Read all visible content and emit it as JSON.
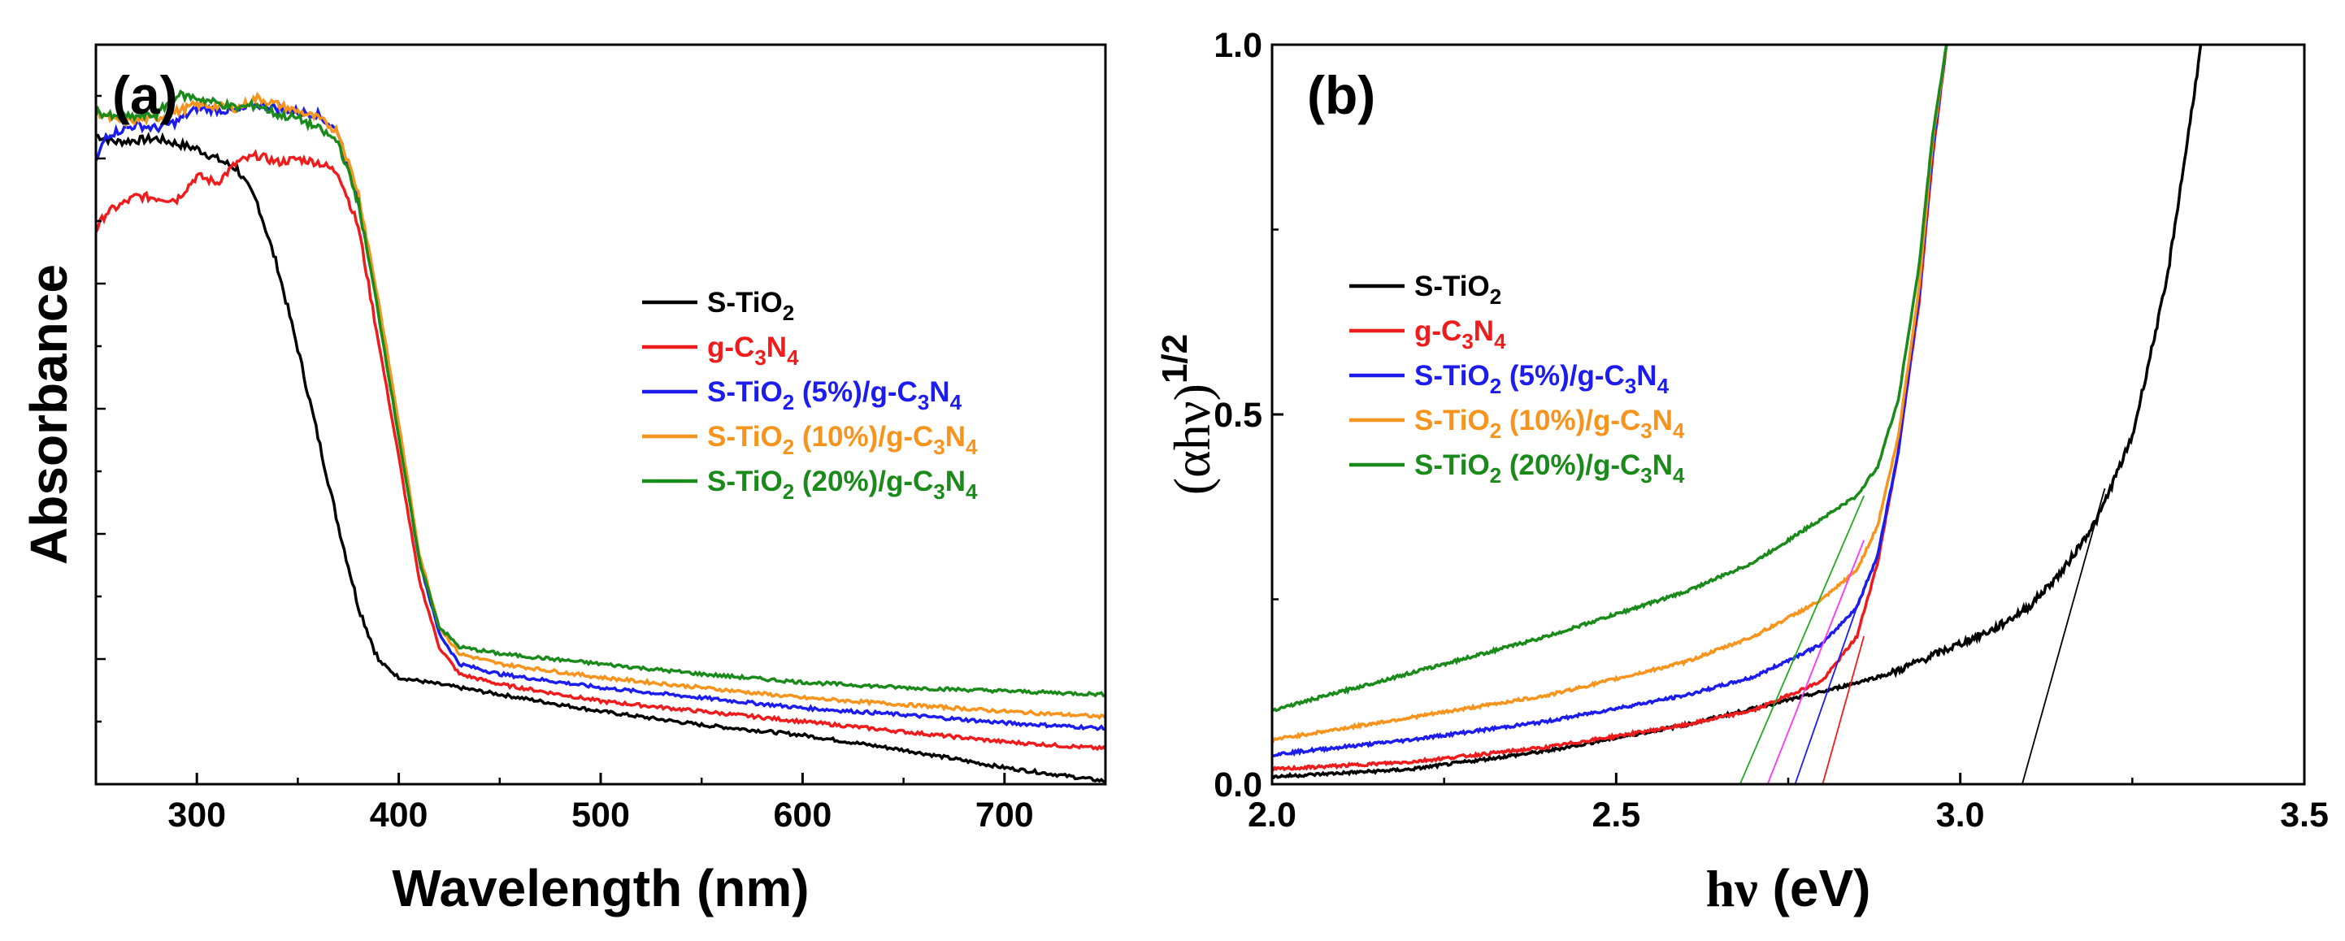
{
  "colors": {
    "S-TiO2": "#000000",
    "g-C3N4": "#ee1c1c",
    "S-TiO2 (5%)/g-C3N4": "#1c1cee",
    "S-TiO2 (10%)/g-C3N4": "#f7941d",
    "S-TiO2 (20%)/g-C3N4": "#1a8a1a",
    "tangent_g-C3N4": "#ee1c1c",
    "tangent_S-TiO2 (5%)/g-C3N4": "#1c1cee",
    "tangent_S-TiO2 (10%)/g-C3N4": "#ff33ff",
    "tangent_S-TiO2 (20%)/g-C3N4": "#22aa22"
  },
  "legend": [
    {
      "key": "S-TiO2",
      "parts": [
        [
          "S-TiO",
          ""
        ],
        [
          "2",
          "sub"
        ]
      ]
    },
    {
      "key": "g-C3N4",
      "parts": [
        [
          "g-C",
          ""
        ],
        [
          "3",
          "sub"
        ],
        [
          "N",
          ""
        ],
        [
          "4",
          "sub"
        ]
      ]
    },
    {
      "key": "S-TiO2 (5%)/g-C3N4",
      "parts": [
        [
          "S-TiO",
          ""
        ],
        [
          "2",
          "sub"
        ],
        [
          " (5%)/g-C",
          ""
        ],
        [
          "3",
          "sub"
        ],
        [
          "N",
          ""
        ],
        [
          "4",
          "sub"
        ]
      ]
    },
    {
      "key": "S-TiO2 (10%)/g-C3N4",
      "parts": [
        [
          "S-TiO",
          ""
        ],
        [
          "2",
          "sub"
        ],
        [
          " (10%)/g-C",
          ""
        ],
        [
          "3",
          "sub"
        ],
        [
          "N",
          ""
        ],
        [
          "4",
          "sub"
        ]
      ]
    },
    {
      "key": "S-TiO2 (20%)/g-C3N4",
      "parts": [
        [
          "S-TiO",
          ""
        ],
        [
          "2",
          "sub"
        ],
        [
          " (20%)/g-C",
          ""
        ],
        [
          "3",
          "sub"
        ],
        [
          "N",
          ""
        ],
        [
          "4",
          "sub"
        ]
      ]
    }
  ],
  "chart_data": [
    {
      "panel": "(a)",
      "type": "line",
      "title": "",
      "xlabel": "Wavelength (nm)",
      "ylabel": "Absorbance",
      "xlim": [
        250,
        750
      ],
      "ylim": [
        0,
        1.0
      ],
      "xticks": [
        300,
        400,
        500,
        600,
        700
      ],
      "yticks_shown": false,
      "legend_position": "right-center",
      "series": [
        {
          "name": "S-TiO2",
          "x": [
            250,
            260,
            280,
            300,
            320,
            330,
            340,
            350,
            360,
            370,
            380,
            390,
            400,
            420,
            450,
            500,
            550,
            600,
            650,
            700,
            750
          ],
          "y": [
            0.955,
            0.945,
            0.95,
            0.935,
            0.905,
            0.855,
            0.76,
            0.64,
            0.51,
            0.38,
            0.26,
            0.18,
            0.155,
            0.145,
            0.13,
            0.105,
            0.085,
            0.07,
            0.048,
            0.022,
            0.002
          ]
        },
        {
          "name": "g-C3N4",
          "x": [
            250,
            255,
            270,
            290,
            300,
            310,
            320,
            330,
            340,
            350,
            360,
            370,
            380,
            390,
            400,
            410,
            420,
            430,
            450,
            500,
            550,
            600,
            650,
            700,
            750
          ],
          "y": [
            0.815,
            0.84,
            0.865,
            0.86,
            0.895,
            0.885,
            0.915,
            0.925,
            0.915,
            0.92,
            0.915,
            0.9,
            0.82,
            0.65,
            0.48,
            0.3,
            0.2,
            0.16,
            0.145,
            0.12,
            0.105,
            0.09,
            0.075,
            0.06,
            0.05
          ]
        },
        {
          "name": "S-TiO2 (5%)/g-C3N4",
          "x": [
            250,
            255,
            270,
            280,
            290,
            300,
            320,
            330,
            340,
            350,
            360,
            370,
            380,
            390,
            400,
            410,
            420,
            430,
            450,
            500,
            550,
            600,
            650,
            700,
            750
          ],
          "y": [
            0.915,
            0.955,
            0.97,
            0.965,
            0.975,
            0.995,
            0.99,
            1.0,
            0.995,
            0.99,
            0.985,
            0.96,
            0.86,
            0.7,
            0.52,
            0.33,
            0.22,
            0.175,
            0.16,
            0.14,
            0.125,
            0.11,
            0.1,
            0.088,
            0.08
          ]
        },
        {
          "name": "S-TiO2 (10%)/g-C3N4",
          "x": [
            250,
            260,
            280,
            300,
            320,
            330,
            340,
            350,
            360,
            370,
            380,
            390,
            400,
            410,
            420,
            430,
            450,
            500,
            550,
            600,
            650,
            700,
            750
          ],
          "y": [
            0.99,
            0.975,
            0.98,
            1.0,
            0.995,
            1.01,
            1.0,
            0.99,
            0.98,
            0.96,
            0.87,
            0.71,
            0.53,
            0.34,
            0.23,
            0.19,
            0.175,
            0.155,
            0.14,
            0.125,
            0.115,
            0.105,
            0.097
          ]
        },
        {
          "name": "S-TiO2 (20%)/g-C3N4",
          "x": [
            250,
            260,
            280,
            290,
            300,
            320,
            330,
            340,
            350,
            360,
            370,
            380,
            390,
            400,
            410,
            420,
            430,
            450,
            500,
            550,
            600,
            650,
            700,
            750
          ],
          "y": [
            0.99,
            0.98,
            0.985,
            1.015,
            1.01,
            0.995,
            1.0,
            0.985,
            0.98,
            0.965,
            0.945,
            0.855,
            0.69,
            0.51,
            0.33,
            0.23,
            0.2,
            0.19,
            0.175,
            0.16,
            0.148,
            0.14,
            0.135,
            0.13
          ]
        }
      ]
    },
    {
      "panel": "(b)",
      "type": "line",
      "title": "",
      "xlabel": "hν (eV)",
      "ylabel": "(αhν)^1/2",
      "xlim": [
        2.0,
        3.5
      ],
      "ylim": [
        0.0,
        1.0
      ],
      "xticks": [
        2.0,
        2.5,
        3.0,
        3.5
      ],
      "yticks": [
        0.0,
        0.5,
        1.0
      ],
      "xtick_labels": [
        "2.0",
        "2.5",
        "3.0",
        "3.5"
      ],
      "ytick_labels": [
        "0.0",
        "0.5",
        "1.0"
      ],
      "legend_position": "left-center",
      "series": [
        {
          "name": "S-TiO2",
          "x": [
            2.0,
            2.2,
            2.4,
            2.6,
            2.8,
            2.9,
            3.0,
            3.05,
            3.1,
            3.15,
            3.2,
            3.25,
            3.3,
            3.33,
            3.35
          ],
          "y": [
            0.01,
            0.02,
            0.045,
            0.08,
            0.125,
            0.15,
            0.19,
            0.21,
            0.24,
            0.29,
            0.36,
            0.47,
            0.68,
            0.87,
            1.0
          ]
        },
        {
          "name": "g-C3N4",
          "x": [
            2.0,
            2.2,
            2.4,
            2.6,
            2.7,
            2.8,
            2.85,
            2.88,
            2.91,
            2.94,
            2.96,
            2.98
          ],
          "y": [
            0.02,
            0.03,
            0.05,
            0.08,
            0.1,
            0.14,
            0.2,
            0.3,
            0.45,
            0.65,
            0.85,
            1.0
          ]
        },
        {
          "name": "S-TiO2 (5%)/g-C3N4",
          "x": [
            2.0,
            2.2,
            2.4,
            2.6,
            2.7,
            2.8,
            2.85,
            2.88,
            2.91,
            2.94,
            2.96,
            2.98
          ],
          "y": [
            0.04,
            0.06,
            0.085,
            0.12,
            0.145,
            0.19,
            0.24,
            0.31,
            0.45,
            0.66,
            0.86,
            1.0
          ]
        },
        {
          "name": "S-TiO2 (10%)/g-C3N4",
          "x": [
            2.0,
            2.2,
            2.4,
            2.6,
            2.7,
            2.8,
            2.85,
            2.88,
            2.91,
            2.94,
            2.96,
            2.98
          ],
          "y": [
            0.06,
            0.09,
            0.12,
            0.165,
            0.2,
            0.25,
            0.29,
            0.35,
            0.47,
            0.67,
            0.87,
            1.0
          ]
        },
        {
          "name": "S-TiO2 (20%)/g-C3N4",
          "x": [
            2.0,
            2.2,
            2.4,
            2.6,
            2.7,
            2.8,
            2.85,
            2.88,
            2.91,
            2.94,
            2.96,
            2.98
          ],
          "y": [
            0.1,
            0.15,
            0.2,
            0.26,
            0.3,
            0.36,
            0.39,
            0.43,
            0.52,
            0.7,
            0.88,
            1.0
          ]
        }
      ],
      "tangent_lines": [
        {
          "name": "tangent_S-TiO2",
          "x": [
            3.09,
            3.21
          ],
          "y": [
            0.0,
            0.4
          ],
          "intercept_eV": 3.09
        },
        {
          "name": "tangent_g-C3N4",
          "x": [
            2.8,
            2.86
          ],
          "y": [
            0.0,
            0.2
          ],
          "intercept_eV": 2.8
        },
        {
          "name": "tangent_S-TiO2 (5%)/g-C3N4",
          "x": [
            2.76,
            2.85
          ],
          "y": [
            0.0,
            0.24
          ],
          "intercept_eV": 2.76
        },
        {
          "name": "tangent_S-TiO2 (10%)/g-C3N4",
          "x": [
            2.72,
            2.86
          ],
          "y": [
            0.0,
            0.33
          ],
          "intercept_eV": 2.72
        },
        {
          "name": "tangent_S-TiO2 (20%)/g-C3N4",
          "x": [
            2.68,
            2.86
          ],
          "y": [
            0.0,
            0.39
          ],
          "intercept_eV": 2.68
        }
      ]
    }
  ]
}
